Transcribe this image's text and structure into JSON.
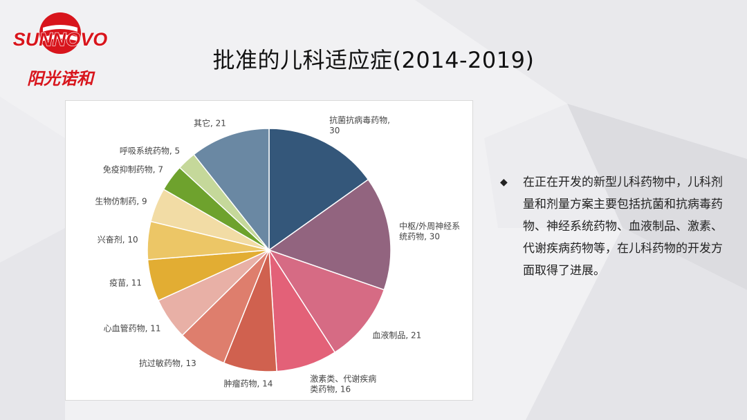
{
  "slide": {
    "title": "批准的儿科适应症(2014-2019)",
    "bullet_mark": "◆",
    "bullet_text": "在正在开发的新型儿科药物中，儿科剂量和剂量方案主要包括抗菌和抗病毒药物、神经系统药物、血液制品、激素、代谢疾病药物等，在儿科药物的开发方面取得了进展。"
  },
  "logo": {
    "brand": "SUNNOVO",
    "chinese": "阳光诺和",
    "color": "#d8151c"
  },
  "chart_data": {
    "type": "pie",
    "slices": [
      {
        "label": "抗菌抗病毒药物,",
        "label2": "30",
        "value": 30,
        "color": "#34577a"
      },
      {
        "label": "中枢/外周神经系",
        "label2": "统药物, 30",
        "value": 30,
        "color": "#92647f"
      },
      {
        "label": "血液制品, 21",
        "label2": "",
        "value": 21,
        "color": "#d66b84"
      },
      {
        "label": "激素类、代谢疾病",
        "label2": "类药物, 16",
        "value": 16,
        "color": "#e36178"
      },
      {
        "label": "肿瘤药物, 14",
        "label2": "",
        "value": 14,
        "color": "#d0614f"
      },
      {
        "label": "抗过敏药物, 13",
        "label2": "",
        "value": 13,
        "color": "#de7e6d"
      },
      {
        "label": "心血管药物, 11",
        "label2": "",
        "value": 11,
        "color": "#e8b0a6"
      },
      {
        "label": "疫苗, 11",
        "label2": "",
        "value": 11,
        "color": "#e2ad33"
      },
      {
        "label": "兴奋剂, 10",
        "label2": "",
        "value": 10,
        "color": "#ecc666"
      },
      {
        "label": "生物仿制药, 9",
        "label2": "",
        "value": 9,
        "color": "#f2dca5"
      },
      {
        "label": "免疫抑制药物, 7",
        "label2": "",
        "value": 7,
        "color": "#6ea22d"
      },
      {
        "label": "呼吸系统药物, 5",
        "label2": "",
        "value": 5,
        "color": "#c5d89a"
      },
      {
        "label": "其它, 21",
        "label2": "",
        "value": 21,
        "color": "#6a88a3"
      }
    ]
  }
}
